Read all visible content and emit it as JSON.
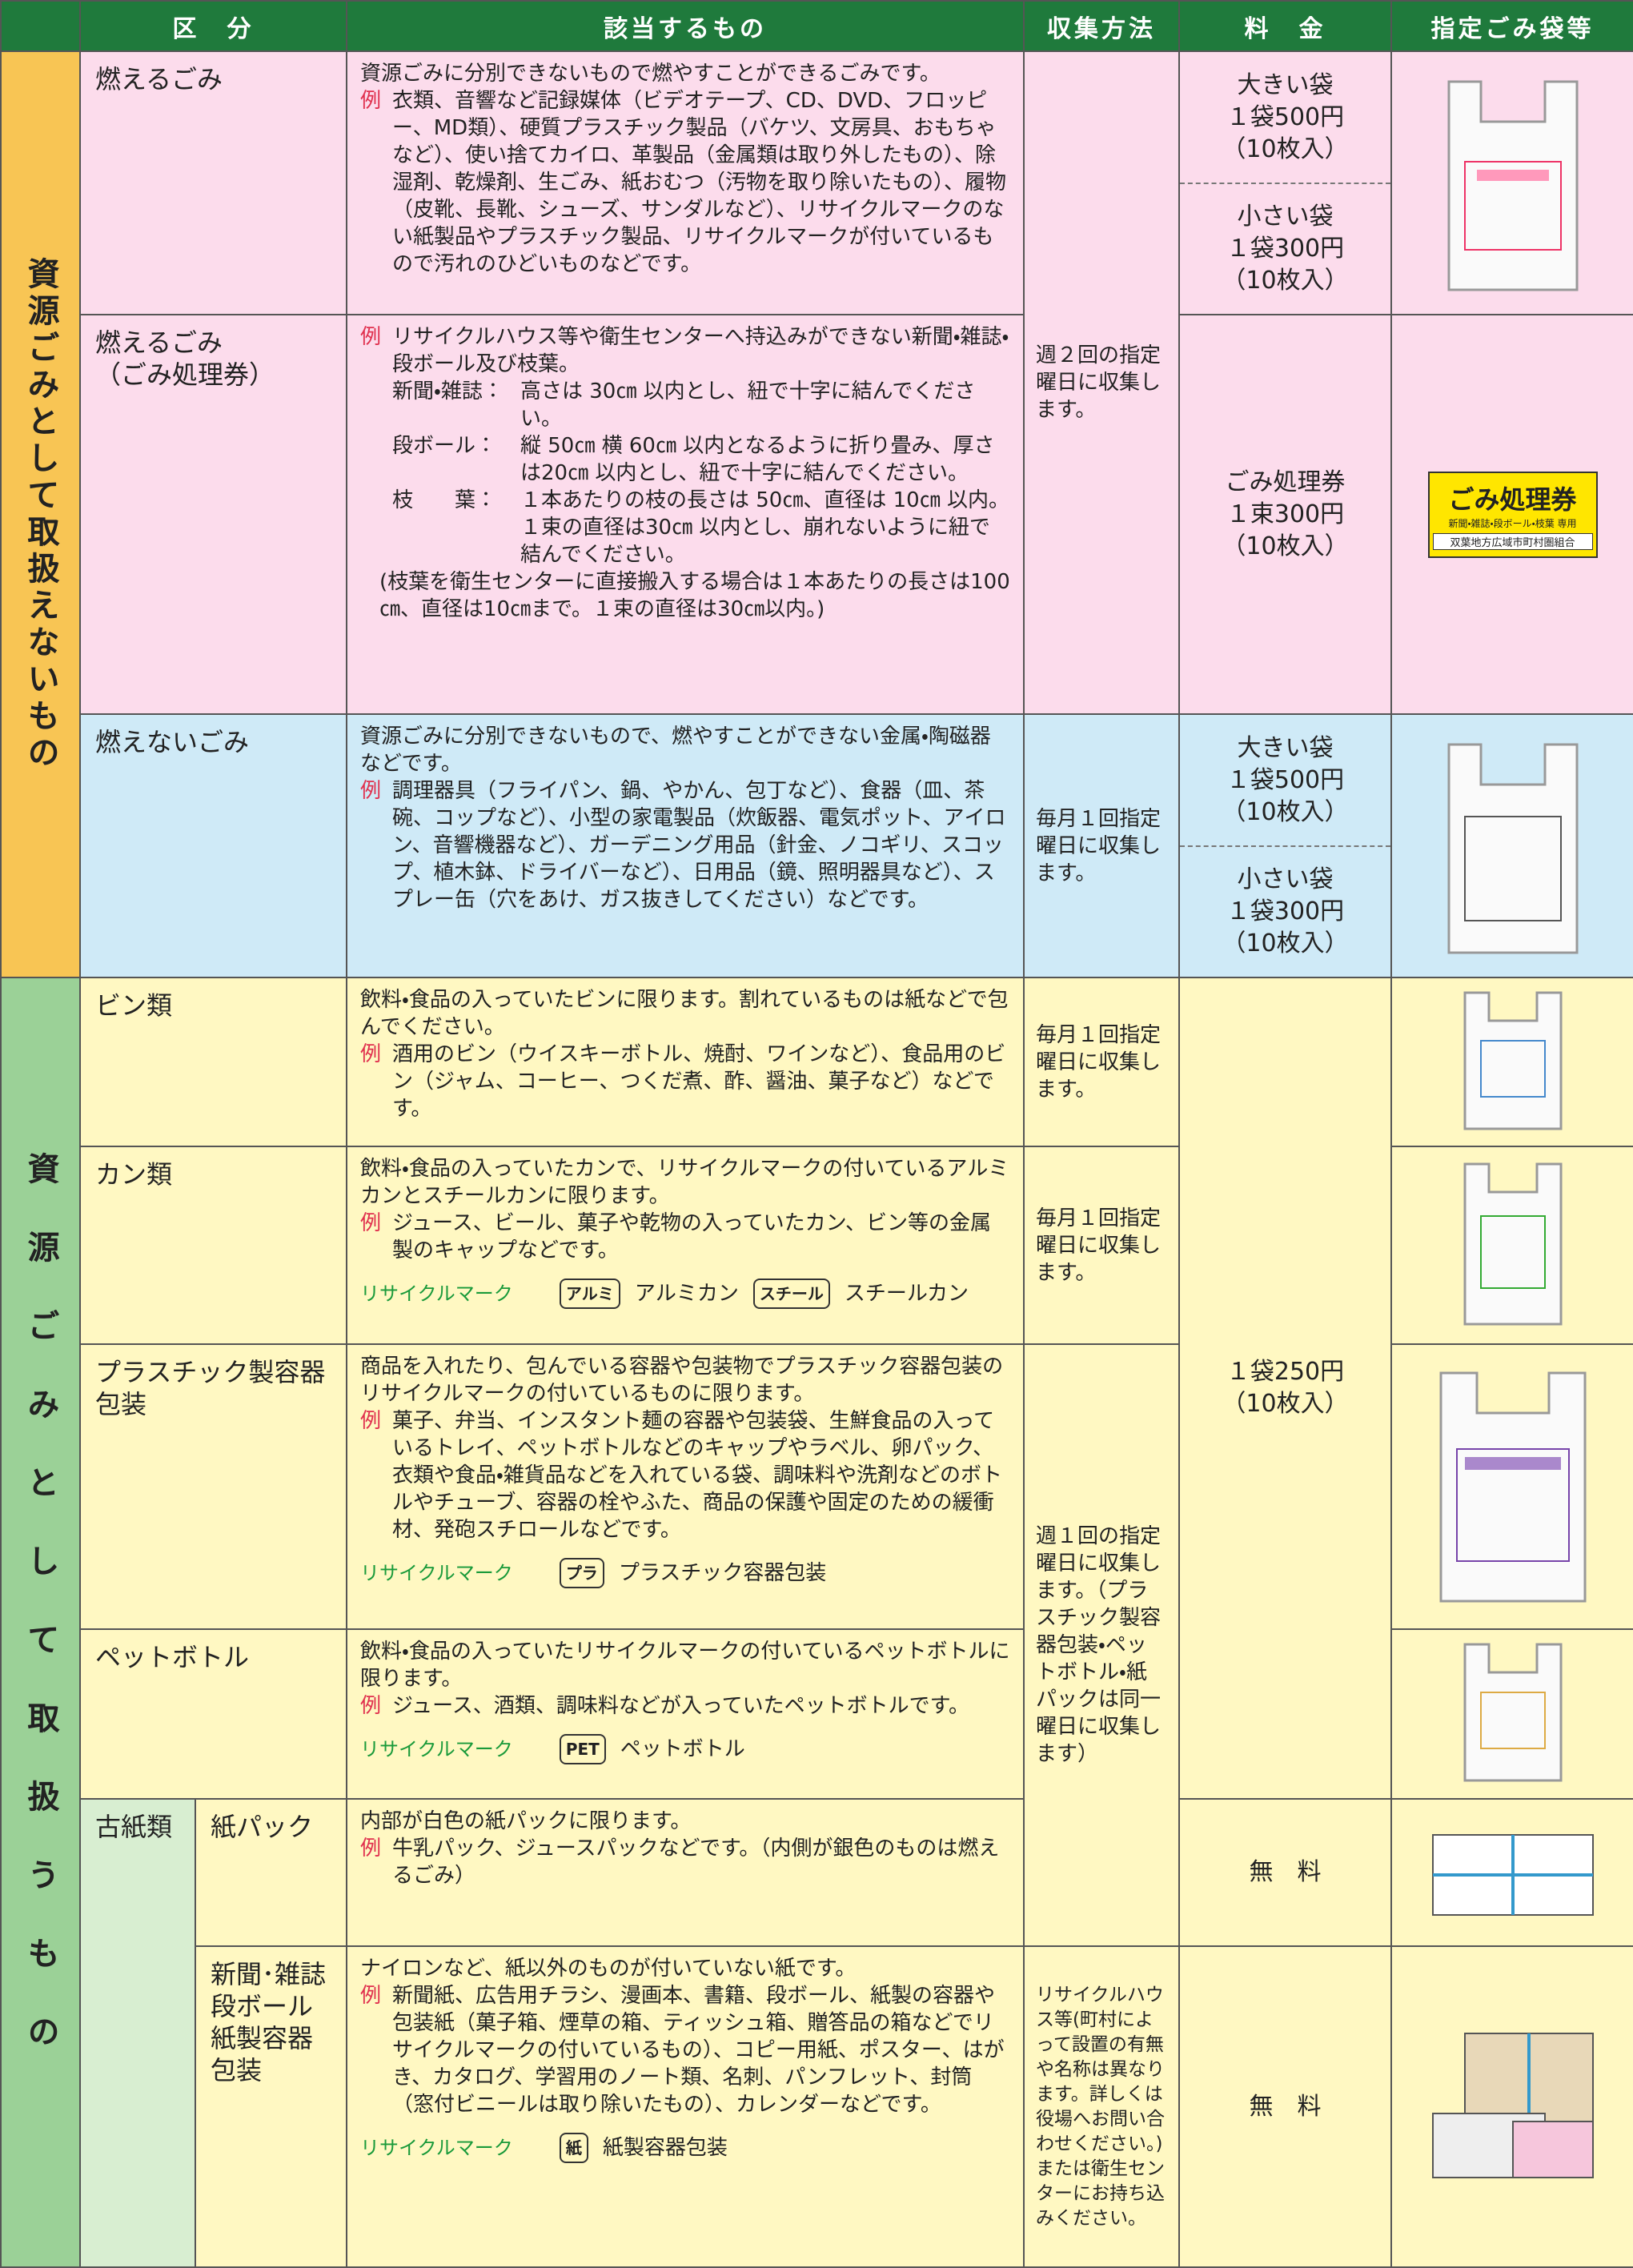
{
  "header": {
    "columns": [
      "区　分",
      "該当するもの",
      "収集方法",
      "料　金",
      "指定ごみ袋等"
    ]
  },
  "sections": [
    "資源ごみとして取扱えないもの",
    "資源ごみとして取扱うもの"
  ],
  "example_mark": "例",
  "recycle_label": "リサイクルマーク",
  "items": [
    {
      "name": "燃えるごみ",
      "intro": "資源ごみに分別できないもので燃やすことができるごみです。",
      "example": "衣類、音響など記録媒体（ビデオテープ、CD、DVD、フロッピー、MD類）、硬質プラスチック製品（バケツ、文房具、おもちゃなど）、使い捨てカイロ、革製品（金属類は取り外したもの）、除湿剤、乾燥剤、生ごみ、紙おむつ（汚物を取り除いたもの）、履物（皮靴、長靴、シューズ、サンダルなど）、リサイクルマークのない紙製品やプラスチック製品、リサイクルマークが付いているもので汚れのひどいものなどです。"
    },
    {
      "name": "燃えるごみ",
      "subname": "（ごみ処理券）",
      "example": "リサイクルハウス等や衛生センターへ持込みができない新聞・雑誌・段ボール及び枝葉。",
      "rules": [
        {
          "term": "新聞・雑誌：",
          "text": "高さは 30㎝ 以内とし、紐で十字に結んでください。"
        },
        {
          "term": "段ボール：",
          "text": "縦 50㎝ 横 60㎝ 以内となるように折り畳み、厚さは20㎝ 以内とし、紐で十字に結んでください。"
        },
        {
          "term": "枝　　葉：",
          "text": "１本あたりの枝の長さは 50㎝、直径は 10㎝ 以内。１束の直径は30㎝ 以内とし、崩れないように紐で結んでください。"
        }
      ],
      "note": "(枝葉を衛生センターに直接搬入する場合は１本あたりの長さは100㎝、直径は10㎝まで。１束の直径は30㎝以内。)"
    },
    {
      "name": "燃えないごみ",
      "intro": "資源ごみに分別できないもので、燃やすことができない金属・陶磁器などです。",
      "example": "調理器具（フライパン、鍋、やかん、包丁など）、食器（皿、茶碗、コップなど）、小型の家電製品（炊飯器、電気ポット、アイロン、音響機器など）、ガーデニング用品（針金、ノコギリ、スコップ、植木鉢、ドライバーなど）、日用品（鏡、照明器具など）、スプレー缶（穴をあけ、ガス抜きしてください）などです。"
    },
    {
      "name": "ビン類",
      "intro": "飲料・食品の入っていたビンに限ります。割れているものは紙などで包んでください。",
      "example": "酒用のビン（ウイスキーボトル、焼酎、ワインなど）、食品用のビン（ジャム、コーヒー、つくだ煮、酢、醤油、菓子など）などです。"
    },
    {
      "name": "カン類",
      "intro": "飲料・食品の入っていたカンで、リサイクルマークの付いているアルミカンとスチールカンに限ります。",
      "example": "ジュース、ビール、菓子や乾物の入っていたカン、ビン等の金属製のキャップなどです。",
      "marks": [
        {
          "icon": "アルミ",
          "name": "アルミカン"
        },
        {
          "icon": "スチール",
          "name": "スチールカン"
        }
      ]
    },
    {
      "name": "プラスチック製容器包装",
      "intro": "商品を入れたり、包んでいる容器や包装物でプラスチック容器包装のリサイクルマークの付いているものに限ります。",
      "example": "菓子、弁当、インスタント麺の容器や包装袋、生鮮食品の入っているトレイ、ペットボトルなどのキャップやラベル、卵パック、衣類や食品・雑貨品などを入れている袋、調味料や洗剤などのボトルやチューブ、容器の栓やふた、商品の保護や固定のための緩衝材、発砲スチロールなどです。",
      "marks": [
        {
          "icon": "プラ",
          "name": "プラスチック容器包装"
        }
      ]
    },
    {
      "name": "ペットボトル",
      "intro": "飲料・食品の入っていたリサイクルマークの付いているペットボトルに限ります。",
      "example": "ジュース、酒類、調味料などが入っていたペットボトルです。",
      "marks": [
        {
          "icon": "PET",
          "name": "ペットボトル"
        }
      ]
    },
    {
      "group": "古紙類",
      "name": "紙パック",
      "intro": "内部が白色の紙パックに限ります。",
      "example": "牛乳パック、ジュースパックなどです。（内側が銀色のものは燃えるごみ）"
    },
    {
      "name": "新聞･雑誌 段ボール 紙製容器 包装",
      "intro": "ナイロンなど、紙以外のものが付いていない紙です。",
      "example": "新聞紙、広告用チラシ、漫画本、書籍、段ボール、紙製の容器や包装紙（菓子箱、煙草の箱、ティッシュ箱、贈答品の箱などでリサイクルマークの付いているもの）、コピー用紙、ポスター、はがき、カタログ、学習用のノート類、名刺、パンフレット、封筒（窓付ビニールは取り除いたもの）、カレンダーなどです。",
      "marks": [
        {
          "icon": "紙",
          "name": "紙製容器包装"
        }
      ]
    }
  ],
  "collection": [
    "週２回の指定曜日に収集します。",
    "毎月１回指定曜日に収集します。",
    "毎月１回指定曜日に収集します。",
    "毎月１回指定曜日に収集します。",
    "週１回の指定曜日に収集します。（プラスチック製容器包装・ペットボトル・紙パックは同一曜日に収集します）",
    "リサイクルハウス等(町村によって設置の有無や名称は異なります。詳しくは役場へお問い合わせください。)または衛生センターにお持ち込みください。"
  ],
  "fees": {
    "large": [
      "大きい袋",
      "１袋500円",
      "（10枚入）"
    ],
    "small": [
      "小さい袋",
      "１袋300円",
      "（10枚入）"
    ],
    "ticket": [
      "ごみ処理券",
      "１束300円",
      "（10枚入）"
    ],
    "resource": [
      "１袋250円",
      "（10枚入）"
    ],
    "free": "無　料"
  },
  "ticket": {
    "title": "ごみ処理券",
    "use": "新聞・雑誌・段ボール・枝葉 専用",
    "issuer": "双葉地方広域市町村圏組合"
  }
}
